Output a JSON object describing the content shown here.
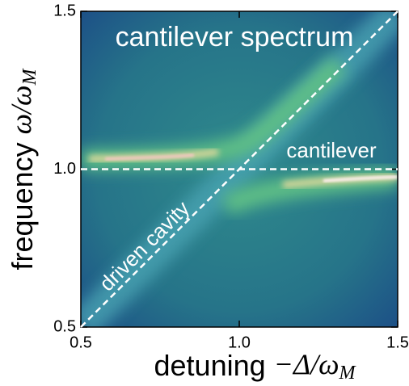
{
  "chart_data": {
    "type": "heatmap",
    "title": "cantilever spectrum",
    "xlabel": {
      "text": "detuning",
      "math": "−Δ/ω",
      "sub": "M"
    },
    "ylabel": {
      "text": "frequency",
      "math": "ω/ω",
      "sub": "M"
    },
    "xlim": [
      0.5,
      1.5
    ],
    "ylim": [
      0.5,
      1.5
    ],
    "xticks": [
      0.5,
      {
        "value": 1,
        "label": "1.0"
      },
      1.5
    ],
    "yticks": [
      0.5,
      {
        "value": 1,
        "label": "1.0"
      },
      1.5
    ],
    "series": [
      {
        "name": "driven cavity",
        "color": "#ffffff",
        "x": [
          0.5,
          1.5
        ],
        "values": [
          0.5,
          1.5
        ]
      },
      {
        "name": "cantilever",
        "color": "#ffffff",
        "x": [
          0.5,
          1.5
        ],
        "values": [
          1,
          1
        ]
      }
    ]
  }
}
